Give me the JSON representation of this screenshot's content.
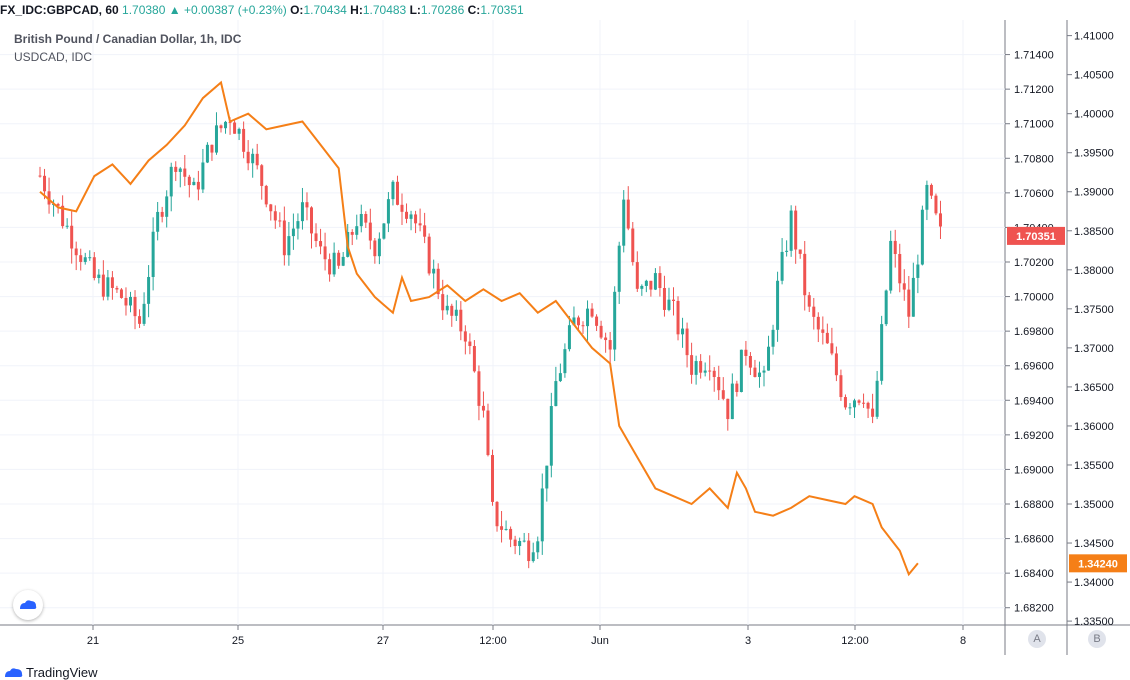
{
  "header": {
    "symbol": "FX_IDC:GBPCAD, 60",
    "last": "1.70380",
    "change_arrow": "▲",
    "change": "+0.00387 (+0.23%)",
    "o_label": "O:",
    "o": "1.70434",
    "h_label": "H:",
    "h": "1.70483",
    "l_label": "L:",
    "l": "1.70286",
    "c_label": "C:",
    "c": "1.70351"
  },
  "legend": {
    "main": "British Pound / Canadian Dollar, 1h, IDC",
    "compare": "USDCAD, IDC"
  },
  "footer": {
    "brand": "TradingView",
    "scale_a": "A",
    "scale_b": "B"
  },
  "colors": {
    "up": "#26a69a",
    "down": "#ef5350",
    "compare": "#f57f17",
    "grid": "#f0f3fa"
  },
  "chart_data": {
    "type": "candlestick",
    "x_tick_labels": [
      "21",
      "25",
      "27",
      "12:00",
      "Jun",
      "3",
      "12:00",
      "8"
    ],
    "left_axis": {
      "ticks": [
        "1.71400",
        "1.71200",
        "1.71000",
        "1.70800",
        "1.70600",
        "1.70400",
        "1.70200",
        "1.70000",
        "1.69800",
        "1.69600",
        "1.69400",
        "1.69200",
        "1.69000",
        "1.68800",
        "1.68600",
        "1.68400",
        "1.68200"
      ],
      "range": [
        1.681,
        1.716
      ],
      "last_label": "1.70351"
    },
    "right_axis": {
      "ticks": [
        "1.41000",
        "1.40500",
        "1.40000",
        "1.39500",
        "1.39000",
        "1.38500",
        "1.38000",
        "1.37500",
        "1.37000",
        "1.36500",
        "1.36000",
        "1.35500",
        "1.35000",
        "1.34500",
        "1.34000",
        "1.33500"
      ],
      "range": [
        1.3345,
        1.412
      ],
      "last_label": "1.34240"
    },
    "series": [
      {
        "name": "British Pound / Canadian Dollar",
        "type": "candles",
        "x_range": [
          0,
          200
        ],
        "close_path": [
          [
            0,
            1.707
          ],
          [
            6,
            1.704
          ],
          [
            12,
            1.701
          ],
          [
            18,
            1.7
          ],
          [
            22,
            1.6985
          ],
          [
            26,
            1.7045
          ],
          [
            30,
            1.708
          ],
          [
            34,
            1.706
          ],
          [
            38,
            1.709
          ],
          [
            42,
            1.7105
          ],
          [
            46,
            1.7085
          ],
          [
            50,
            1.706
          ],
          [
            54,
            1.703
          ],
          [
            58,
            1.705
          ],
          [
            62,
            1.7025
          ],
          [
            66,
            1.7015
          ],
          [
            70,
            1.7045
          ],
          [
            74,
            1.703
          ],
          [
            78,
            1.706
          ],
          [
            82,
            1.705
          ],
          [
            86,
            1.702
          ],
          [
            90,
            1.699
          ],
          [
            94,
            1.698
          ],
          [
            98,
            1.693
          ],
          [
            100,
            1.6875
          ],
          [
            104,
            1.686
          ],
          [
            108,
            1.6855
          ],
          [
            110,
            1.6865
          ],
          [
            114,
            1.695
          ],
          [
            118,
            1.6985
          ],
          [
            122,
            1.6995
          ],
          [
            126,
            1.697
          ],
          [
            129,
            1.706
          ],
          [
            132,
            1.7
          ],
          [
            136,
            1.701
          ],
          [
            140,
            1.699
          ],
          [
            144,
            1.696
          ],
          [
            148,
            1.6965
          ],
          [
            152,
            1.6935
          ],
          [
            156,
            1.697
          ],
          [
            160,
            1.695
          ],
          [
            163,
            1.7005
          ],
          [
            166,
            1.7045
          ],
          [
            170,
            1.699
          ],
          [
            174,
            1.697
          ],
          [
            178,
            1.694
          ],
          [
            182,
            1.6945
          ],
          [
            184,
            1.6925
          ],
          [
            188,
            1.703
          ],
          [
            192,
            1.699
          ],
          [
            196,
            1.706
          ],
          [
            199,
            1.7035
          ]
        ]
      },
      {
        "name": "USDCAD",
        "type": "line",
        "points": [
          [
            0,
            1.39
          ],
          [
            4,
            1.388
          ],
          [
            8,
            1.3875
          ],
          [
            12,
            1.392
          ],
          [
            16,
            1.3935
          ],
          [
            20,
            1.391
          ],
          [
            24,
            1.394
          ],
          [
            28,
            1.396
          ],
          [
            32,
            1.3985
          ],
          [
            36,
            1.402
          ],
          [
            40,
            1.404
          ],
          [
            42,
            1.399
          ],
          [
            46,
            1.4
          ],
          [
            50,
            1.398
          ],
          [
            54,
            1.3985
          ],
          [
            58,
            1.399
          ],
          [
            62,
            1.396
          ],
          [
            66,
            1.393
          ],
          [
            68,
            1.383
          ],
          [
            70,
            1.3795
          ],
          [
            72,
            1.378
          ],
          [
            74,
            1.3765
          ],
          [
            78,
            1.3745
          ],
          [
            80,
            1.379
          ],
          [
            82,
            1.376
          ],
          [
            86,
            1.3765
          ],
          [
            90,
            1.378
          ],
          [
            94,
            1.376
          ],
          [
            98,
            1.3775
          ],
          [
            102,
            1.376
          ],
          [
            106,
            1.377
          ],
          [
            110,
            1.3745
          ],
          [
            114,
            1.376
          ],
          [
            118,
            1.373
          ],
          [
            122,
            1.37
          ],
          [
            126,
            1.368
          ],
          [
            128,
            1.36
          ],
          [
            132,
            1.356
          ],
          [
            136,
            1.352
          ],
          [
            140,
            1.351
          ],
          [
            144,
            1.35
          ],
          [
            148,
            1.352
          ],
          [
            152,
            1.3495
          ],
          [
            154,
            1.354
          ],
          [
            156,
            1.352
          ],
          [
            158,
            1.349
          ],
          [
            162,
            1.3485
          ],
          [
            166,
            1.3495
          ],
          [
            170,
            1.351
          ],
          [
            174,
            1.3505
          ],
          [
            178,
            1.35
          ],
          [
            180,
            1.351
          ],
          [
            184,
            1.35
          ],
          [
            186,
            1.347
          ],
          [
            190,
            1.344
          ],
          [
            192,
            1.341
          ],
          [
            194,
            1.3424
          ]
        ]
      }
    ]
  }
}
